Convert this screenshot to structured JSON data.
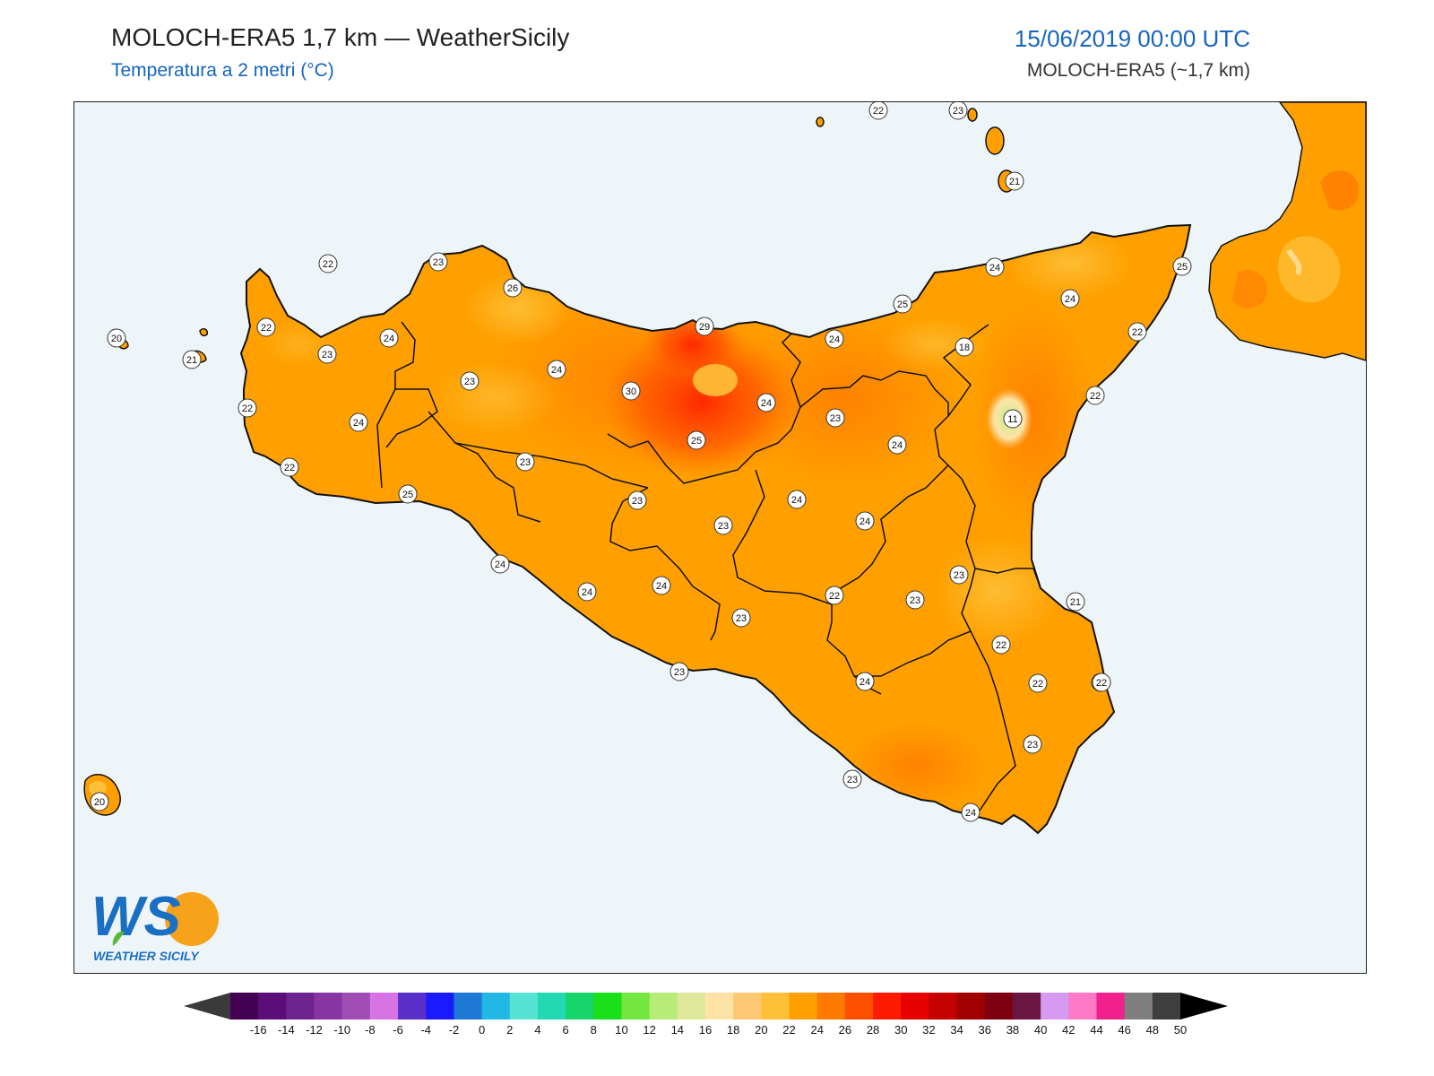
{
  "header": {
    "title": "MOLOCH-ERA5 1,7 km — WeatherSicily",
    "subtitle": "Temperatura a 2 metri (°C)",
    "datetime": "15/06/2019 00:00 UTC",
    "model": "MOLOCH-ERA5 (~1,7 km)"
  },
  "logo": {
    "letters": "WS",
    "name": "WEATHER SICILY"
  },
  "map": {
    "sea_color": "#eef5f9",
    "labels": [
      {
        "value": "22"
      },
      {
        "value": "23"
      },
      {
        "value": "21"
      },
      {
        "value": "20"
      },
      {
        "value": "21"
      },
      {
        "value": "22"
      },
      {
        "value": "23"
      },
      {
        "value": "26"
      },
      {
        "value": "22"
      },
      {
        "value": "24"
      },
      {
        "value": "24"
      },
      {
        "value": "23"
      },
      {
        "value": "24"
      },
      {
        "value": "29"
      },
      {
        "value": "30"
      },
      {
        "value": "22"
      },
      {
        "value": "23"
      },
      {
        "value": "22"
      },
      {
        "value": "23"
      },
      {
        "value": "25"
      },
      {
        "value": "24"
      },
      {
        "value": "25"
      },
      {
        "value": "24"
      },
      {
        "value": "25"
      },
      {
        "value": "18"
      },
      {
        "value": "24"
      },
      {
        "value": "25"
      },
      {
        "value": "24"
      },
      {
        "value": "22"
      },
      {
        "value": "22"
      },
      {
        "value": "11"
      },
      {
        "value": "23"
      },
      {
        "value": "24"
      },
      {
        "value": "23"
      },
      {
        "value": "23"
      },
      {
        "value": "24"
      },
      {
        "value": "24"
      },
      {
        "value": "24"
      },
      {
        "value": "24"
      },
      {
        "value": "24"
      },
      {
        "value": "23"
      },
      {
        "value": "22"
      },
      {
        "value": "21"
      },
      {
        "value": "23"
      },
      {
        "value": "23"
      },
      {
        "value": "22"
      },
      {
        "value": "23"
      },
      {
        "value": "24"
      },
      {
        "value": "22"
      },
      {
        "value": "23"
      },
      {
        "value": "23"
      },
      {
        "value": "23"
      },
      {
        "value": "24"
      },
      {
        "value": "22"
      },
      {
        "value": "20"
      }
    ]
  },
  "colorbar": {
    "ticks": [
      "-16",
      "-14",
      "-12",
      "-10",
      "-8",
      "-6",
      "-4",
      "-2",
      "0",
      "2",
      "4",
      "6",
      "8",
      "10",
      "12",
      "14",
      "16",
      "18",
      "20",
      "22",
      "24",
      "26",
      "28",
      "30",
      "32",
      "34",
      "36",
      "38",
      "40",
      "42",
      "44",
      "46",
      "48",
      "50"
    ],
    "colors": [
      "#440154",
      "#5c0d7a",
      "#6f2390",
      "#8735a3",
      "#a04db6",
      "#d873e6",
      "#5b2fc9",
      "#1a1aff",
      "#1e78d6",
      "#21b8e6",
      "#55e3d3",
      "#22d9b3",
      "#14d46a",
      "#1ae01a",
      "#73e640",
      "#b8ec78",
      "#dfe89a",
      "#ffe3a6",
      "#fcc873",
      "#fdc038",
      "#ffa000",
      "#ff7a00",
      "#ff4f00",
      "#ff1a00",
      "#e60000",
      "#c40000",
      "#a10000",
      "#7d0010",
      "#6b1642",
      "#d69af0",
      "#ff7ac6",
      "#f0208c",
      "#7f7f7f",
      "#3f3f3f"
    ],
    "under_color": "#3a3a3a",
    "over_color": "#000000"
  }
}
